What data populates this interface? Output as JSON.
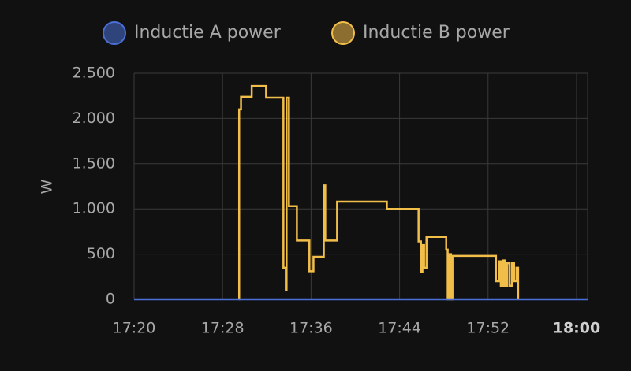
{
  "chart_data": {
    "type": "line",
    "ylabel": "W",
    "series": [
      {
        "name": "Inductie A power",
        "color": "#4a6fd6",
        "x": [
          "17:20:00",
          "18:01:00"
        ],
        "values": [
          0,
          0
        ]
      },
      {
        "name": "Inductie B power",
        "color": "#f2be4a",
        "x": [
          "17:29:29",
          "17:29:30",
          "17:29:40",
          "17:30:38",
          "17:31:56",
          "17:33:30",
          "17:33:43",
          "17:33:47",
          "17:34:00",
          "17:34:43",
          "17:35:51",
          "17:36:13",
          "17:37:09",
          "17:37:17",
          "17:38:21",
          "17:42:51",
          "17:45:43",
          "17:45:56",
          "17:46:04",
          "17:46:13",
          "17:46:26",
          "17:48:13",
          "17:48:21",
          "17:48:30",
          "17:48:39",
          "17:48:47",
          "17:52:43",
          "17:53:00",
          "17:53:09",
          "17:53:21",
          "17:53:30",
          "17:53:43",
          "17:53:56",
          "17:54:09",
          "17:54:21",
          "17:54:34",
          "17:54:43"
        ],
        "values": [
          0,
          2100,
          2240,
          2360,
          2230,
          350,
          100,
          2230,
          1030,
          650,
          310,
          470,
          1260,
          650,
          1080,
          1000,
          640,
          300,
          600,
          350,
          690,
          550,
          0,
          500,
          0,
          480,
          200,
          420,
          150,
          430,
          150,
          400,
          150,
          400,
          200,
          350,
          0
        ]
      }
    ],
    "xlim": [
      "17:20",
      "18:01"
    ],
    "xticks": [
      "17:20",
      "17:28",
      "17:36",
      "17:44",
      "17:52",
      "18:00"
    ],
    "ylim": [
      0,
      2500
    ],
    "yticks": [
      0,
      500,
      {
        "value": 1000,
        "label": "1.000"
      },
      {
        "value": 1500,
        "label": "1.500"
      },
      {
        "value": 2000,
        "label": "2.000"
      },
      {
        "value": 2500,
        "label": "2.500"
      }
    ],
    "grid": true
  }
}
